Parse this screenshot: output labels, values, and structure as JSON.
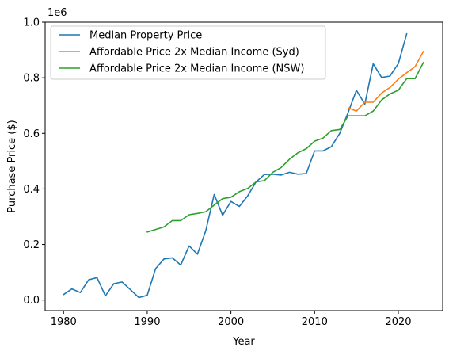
{
  "chart_data": {
    "type": "line",
    "xlabel": "Year",
    "ylabel": "Purchase Price ($)",
    "y_offset_label": "1e6",
    "xlim": [
      1977.8,
      2025.3
    ],
    "ylim": [
      -0.038,
      1.0
    ],
    "y_scale_note": "values in millions of dollars (axis multiplier 1e6)",
    "x_ticks": [
      1980,
      1990,
      2000,
      2010,
      2020
    ],
    "y_ticks": [
      0.0,
      0.2,
      0.4,
      0.6,
      0.8,
      1.0
    ],
    "x_tick_labels": [
      "1980",
      "1990",
      "2000",
      "2010",
      "2020"
    ],
    "y_tick_labels": [
      "0.0",
      "0.2",
      "0.4",
      "0.6",
      "0.8",
      "1.0"
    ],
    "grid": false,
    "legend_position": "top-left",
    "series": [
      {
        "name": "Median Property Price",
        "color": "#1f77b4",
        "x": [
          1980,
          1981,
          1982,
          1983,
          1984,
          1985,
          1986,
          1987,
          1988,
          1989,
          1990,
          1991,
          1992,
          1993,
          1994,
          1995,
          1996,
          1997,
          1998,
          1999,
          2000,
          2001,
          2002,
          2003,
          2004,
          2005,
          2006,
          2007,
          2008,
          2009,
          2010,
          2011,
          2012,
          2013,
          2014,
          2015,
          2016,
          2017,
          2018,
          2019,
          2020,
          2021
        ],
        "values": [
          0.02,
          0.04,
          0.027,
          0.073,
          0.081,
          0.015,
          0.059,
          0.065,
          0.037,
          0.009,
          0.017,
          0.113,
          0.148,
          0.152,
          0.126,
          0.195,
          0.165,
          0.25,
          0.38,
          0.305,
          0.355,
          0.337,
          0.375,
          0.425,
          0.452,
          0.453,
          0.45,
          0.46,
          0.453,
          0.455,
          0.537,
          0.537,
          0.552,
          0.6,
          0.675,
          0.755,
          0.705,
          0.85,
          0.801,
          0.806,
          0.851,
          0.958
        ]
      },
      {
        "name": "Affordable Price 2x Median Income (Syd)",
        "color": "#ff7f0e",
        "x": [
          2014,
          2015,
          2016,
          2017,
          2018,
          2019,
          2020,
          2021,
          2022,
          2023
        ],
        "values": [
          0.692,
          0.68,
          0.712,
          0.712,
          0.745,
          0.765,
          0.795,
          0.818,
          0.84,
          0.895
        ]
      },
      {
        "name": "Affordable Price 2x Median Income (NSW)",
        "color": "#2ca02c",
        "x": [
          1990,
          1991,
          1992,
          1993,
          1994,
          1995,
          1996,
          1997,
          1998,
          1999,
          2000,
          2001,
          2002,
          2003,
          2004,
          2005,
          2006,
          2007,
          2008,
          2009,
          2010,
          2011,
          2012,
          2013,
          2014,
          2015,
          2016,
          2017,
          2018,
          2019,
          2020,
          2021,
          2022,
          2023
        ],
        "values": [
          0.245,
          0.254,
          0.263,
          0.286,
          0.286,
          0.307,
          0.312,
          0.318,
          0.342,
          0.365,
          0.37,
          0.39,
          0.402,
          0.425,
          0.43,
          0.46,
          0.477,
          0.507,
          0.53,
          0.545,
          0.572,
          0.583,
          0.61,
          0.614,
          0.663,
          0.663,
          0.663,
          0.68,
          0.72,
          0.742,
          0.755,
          0.797,
          0.797,
          0.855
        ]
      }
    ]
  }
}
